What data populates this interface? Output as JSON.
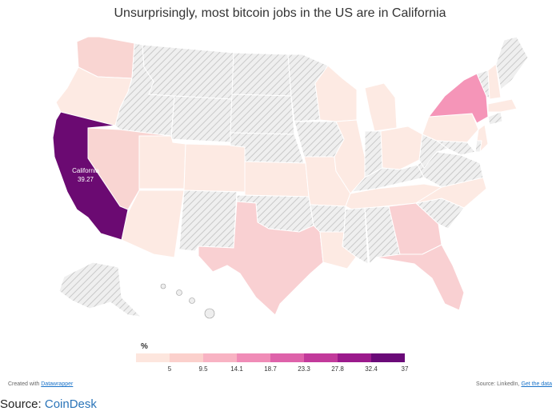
{
  "title": "Unsurprisingly, most bitcoin jobs in the US are in California",
  "highlight": {
    "state": "California",
    "value": "39.27"
  },
  "legend": {
    "unit": "%",
    "ticks": [
      "5",
      "9.5",
      "14.1",
      "18.7",
      "23.3",
      "27.8",
      "32.4",
      "37"
    ],
    "colors": [
      "#fde6de",
      "#fbd0cc",
      "#f8b3c3",
      "#f08cb7",
      "#de62aa",
      "#c23a9b",
      "#9b1a8c",
      "#6a0a78"
    ]
  },
  "credits": {
    "left_prefix": "Created with ",
    "left_link": "Datawrapper",
    "right_prefix": "Source: LinkedIn, ",
    "right_link": "Get the data"
  },
  "source": {
    "prefix": "Source: ",
    "link": "CoinDesk"
  },
  "colors": {
    "no_data_hatch": "#cfcfcf",
    "low": "#fdeae3",
    "light_pink": "#f9cfd0",
    "pink": "#f595b8",
    "california": "#6b0a72"
  }
}
